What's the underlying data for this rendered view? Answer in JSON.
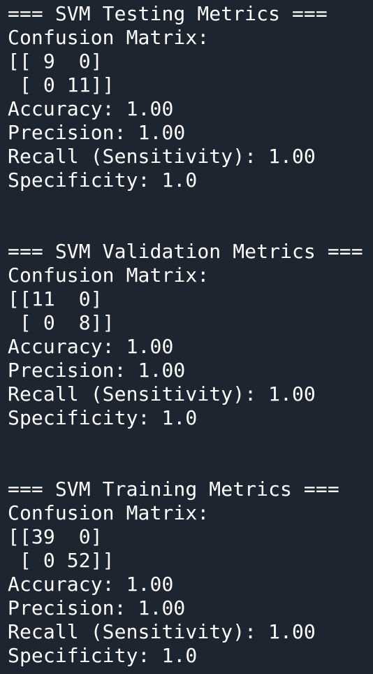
{
  "terminal": {
    "background": "#1c2530",
    "text_color": "#ffffff",
    "sections": {
      "testing": {
        "header": "=== SVM Testing Metrics ===",
        "cm_label": "Confusion Matrix:",
        "cm_row1": "[[ 9  0]",
        "cm_row2": " [ 0 11]]",
        "accuracy": "Accuracy: 1.00",
        "precision": "Precision: 1.00",
        "recall": "Recall (Sensitivity): 1.00",
        "specificity": "Specificity: 1.0"
      },
      "validation": {
        "header": "=== SVM Validation Metrics ===",
        "cm_label": "Confusion Matrix:",
        "cm_row1": "[[11  0]",
        "cm_row2": " [ 0  8]]",
        "accuracy": "Accuracy: 1.00",
        "precision": "Precision: 1.00",
        "recall": "Recall (Sensitivity): 1.00",
        "specificity": "Specificity: 1.0"
      },
      "training": {
        "header": "=== SVM Training Metrics ===",
        "cm_label": "Confusion Matrix:",
        "cm_row1": "[[39  0]",
        "cm_row2": " [ 0 52]]",
        "accuracy": "Accuracy: 1.00",
        "precision": "Precision: 1.00",
        "recall": "Recall (Sensitivity): 1.00",
        "specificity": "Specificity: 1.0"
      }
    }
  }
}
